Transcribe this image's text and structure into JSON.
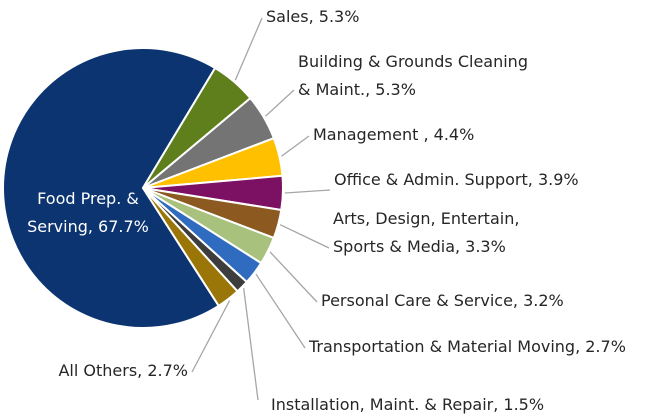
{
  "chart_data": {
    "type": "pie",
    "labels": [
      [
        "Food Prep. &",
        "Serving, 67.7%"
      ],
      [
        "Sales, 5.3%"
      ],
      [
        "Building & Grounds Cleaning",
        "& Maint., 5.3%"
      ],
      [
        "Management , 4.4%"
      ],
      [
        "Office & Admin. Support, 3.9%"
      ],
      [
        "Arts, Design, Entertain,",
        "Sports & Media, 3.3%"
      ],
      [
        "Personal Care & Service, 3.2%"
      ],
      [
        "Transportation & Material Moving, 2.7%"
      ],
      [
        "Installation, Maint. & Repair, 1.5%"
      ],
      [
        "All Others, 2.7%"
      ]
    ],
    "values": [
      67.7,
      5.3,
      5.3,
      4.4,
      3.9,
      3.3,
      3.2,
      2.7,
      1.5,
      2.7
    ],
    "colors": [
      "#0c3471",
      "#5e7f1c",
      "#747474",
      "#ffc000",
      "#7c1062",
      "#8c5a20",
      "#a8c27d",
      "#2f6cbf",
      "#3d3d3d",
      "#9a7608"
    ]
  }
}
